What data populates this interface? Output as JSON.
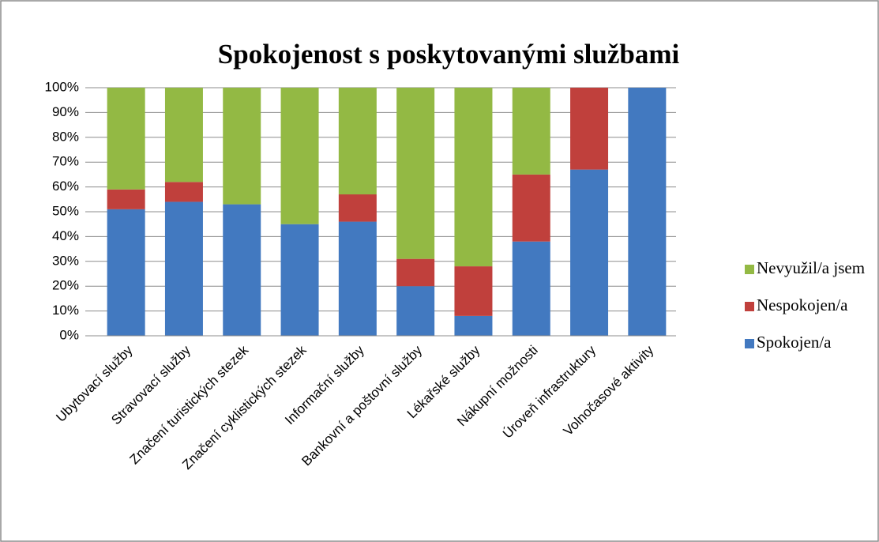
{
  "chart_data": {
    "type": "stacked_bar",
    "title": "Spokojenost s poskytovanými službami",
    "categories": [
      "Ubytovací služby",
      "Stravovací služby",
      "Značení turistických stezek",
      "Značení cyklistických stezek",
      "Informační služby",
      "Bankovní a poštovní služby",
      "Lékařské služby",
      "Nákupní možnosti",
      "Úroveň infrastruktury",
      "Volnočasové aktivity"
    ],
    "series": [
      {
        "name": "Spokojen/a",
        "color": "#4279c0",
        "values": [
          51,
          54,
          53,
          45,
          46,
          20,
          8,
          38,
          67,
          100
        ]
      },
      {
        "name": "Nespokojen/a",
        "color": "#c0403c",
        "values": [
          8,
          8,
          0,
          0,
          11,
          11,
          20,
          27,
          33,
          0
        ]
      },
      {
        "name": "Nevyužil/a jsem",
        "color": "#93b944",
        "values": [
          41,
          38,
          47,
          55,
          43,
          69,
          72,
          35,
          0,
          0
        ]
      }
    ],
    "ylim": [
      0,
      100
    ],
    "yticks": [
      {
        "value": 0,
        "label": "0%"
      },
      {
        "value": 10,
        "label": "10%"
      },
      {
        "value": 20,
        "label": "20%"
      },
      {
        "value": 30,
        "label": "30%"
      },
      {
        "value": 40,
        "label": "40%"
      },
      {
        "value": 50,
        "label": "50%"
      },
      {
        "value": 60,
        "label": "60%"
      },
      {
        "value": 70,
        "label": "70%"
      },
      {
        "value": 80,
        "label": "80%"
      },
      {
        "value": 90,
        "label": "90%"
      },
      {
        "value": 100,
        "label": "100%"
      }
    ],
    "grid": true,
    "legend": "right"
  }
}
